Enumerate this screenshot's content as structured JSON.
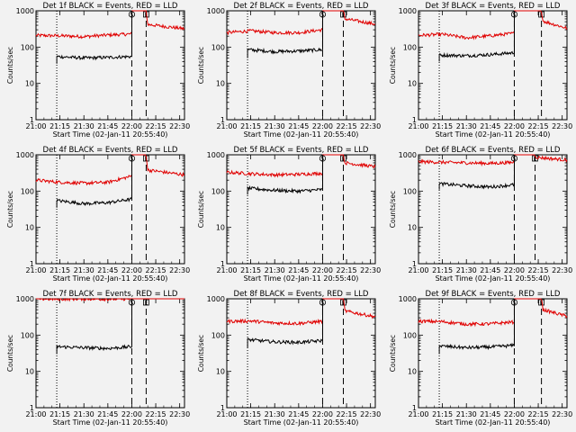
{
  "figure": {
    "background": "#f2f2f2",
    "colors": {
      "events": "#000000",
      "lld": "#e00000",
      "axis": "#000000"
    }
  },
  "chart_data": [
    {
      "type": "line",
      "title": "Det 1f BLACK = Events, RED = LLD",
      "xlabel": "Start Time (02-Jan-11 20:55:40)",
      "ylabel": "Counts/sec",
      "yscale": "log",
      "ylim": [
        1,
        1000
      ],
      "xlim": [
        "21:00",
        "22:33"
      ],
      "xticks": [
        "21:00",
        "21:15",
        "21:30",
        "21:45",
        "22:00",
        "22:15",
        "22:30"
      ],
      "yticks": [
        "1",
        "10",
        "100",
        "1000"
      ],
      "grid": false,
      "markers": [
        {
          "time": "21:13",
          "style": "dotted"
        },
        {
          "time": "22:00",
          "style": "dashed"
        },
        {
          "time": "22:09",
          "style": "dashed"
        }
      ],
      "flags": [
        {
          "time": "22:00",
          "label": "S"
        },
        {
          "time": "22:09",
          "label": "E"
        }
      ],
      "series": [
        {
          "color": "#e00000",
          "points": [
            [
              "21:00",
              210
            ],
            [
              "21:15",
              205
            ],
            [
              "21:30",
              195
            ],
            [
              "21:45",
              215
            ],
            [
              "22:00",
              230
            ],
            [
              "22:00",
              1000
            ],
            [
              "22:09",
              1000
            ],
            [
              "22:10",
              420
            ],
            [
              "22:33",
              320
            ]
          ]
        },
        {
          "color": "#000000",
          "points": [
            [
              "21:13",
              35
            ],
            [
              "21:13",
              55
            ],
            [
              "21:30",
              50
            ],
            [
              "21:45",
              52
            ],
            [
              "22:00",
              55
            ],
            [
              "22:00",
              1000
            ]
          ]
        }
      ]
    },
    {
      "type": "line",
      "title": "Det 2f BLACK = Events, RED = LLD",
      "xlabel": "Start Time (02-Jan-11 20:55:40)",
      "ylabel": "Counts/sec",
      "yscale": "log",
      "ylim": [
        1,
        1000
      ],
      "xlim": [
        "21:00",
        "22:33"
      ],
      "xticks": [
        "21:00",
        "21:15",
        "21:30",
        "21:45",
        "22:00",
        "22:15",
        "22:30"
      ],
      "yticks": [
        "1",
        "10",
        "100",
        "1000"
      ],
      "grid": false,
      "markers": [
        {
          "time": "21:13",
          "style": "dotted"
        },
        {
          "time": "22:00",
          "style": "dashed"
        },
        {
          "time": "22:13",
          "style": "dashed"
        }
      ],
      "flags": [
        {
          "time": "22:00",
          "label": "S"
        },
        {
          "time": "22:13",
          "label": "E"
        }
      ],
      "series": [
        {
          "color": "#e00000",
          "points": [
            [
              "21:00",
              250
            ],
            [
              "21:15",
              280
            ],
            [
              "21:30",
              250
            ],
            [
              "21:45",
              250
            ],
            [
              "22:00",
              300
            ],
            [
              "22:00",
              1000
            ],
            [
              "22:13",
              1000
            ],
            [
              "22:14",
              600
            ],
            [
              "22:33",
              430
            ]
          ]
        },
        {
          "color": "#000000",
          "points": [
            [
              "21:13",
              50
            ],
            [
              "21:13",
              85
            ],
            [
              "21:30",
              75
            ],
            [
              "21:45",
              78
            ],
            [
              "22:00",
              85
            ],
            [
              "22:00",
              1000
            ]
          ]
        }
      ]
    },
    {
      "type": "line",
      "title": "Det 3f BLACK = Events, RED = LLD",
      "xlabel": "Start Time (02-Jan-11 20:55:40)",
      "ylabel": "Counts/sec",
      "yscale": "log",
      "ylim": [
        1,
        1000
      ],
      "xlim": [
        "21:00",
        "22:33"
      ],
      "xticks": [
        "21:00",
        "21:15",
        "21:30",
        "21:45",
        "22:00",
        "22:15",
        "22:30"
      ],
      "yticks": [
        "1",
        "10",
        "100",
        "1000"
      ],
      "grid": false,
      "markers": [
        {
          "time": "21:13",
          "style": "dotted"
        },
        {
          "time": "22:00",
          "style": "dashed"
        },
        {
          "time": "22:17",
          "style": "dashed"
        }
      ],
      "flags": [
        {
          "time": "22:00",
          "label": "S"
        },
        {
          "time": "22:17",
          "label": "E"
        }
      ],
      "series": [
        {
          "color": "#e00000",
          "points": [
            [
              "21:00",
              210
            ],
            [
              "21:15",
              225
            ],
            [
              "21:30",
              180
            ],
            [
              "21:45",
              205
            ],
            [
              "22:00",
              240
            ],
            [
              "22:00",
              1000
            ],
            [
              "22:17",
              1000
            ],
            [
              "22:18",
              520
            ],
            [
              "22:33",
              330
            ]
          ]
        },
        {
          "color": "#000000",
          "points": [
            [
              "21:13",
              40
            ],
            [
              "21:13",
              60
            ],
            [
              "21:30",
              58
            ],
            [
              "21:45",
              62
            ],
            [
              "22:00",
              70
            ],
            [
              "22:00",
              1000
            ]
          ]
        }
      ]
    },
    {
      "type": "line",
      "title": "Det 4f BLACK = Events, RED = LLD",
      "xlabel": "Start Time (02-Jan-11 20:55:40)",
      "ylabel": "Counts/sec",
      "yscale": "log",
      "ylim": [
        1,
        1000
      ],
      "xlim": [
        "21:00",
        "22:33"
      ],
      "xticks": [
        "21:00",
        "21:15",
        "21:30",
        "21:45",
        "22:00",
        "22:15",
        "22:30"
      ],
      "yticks": [
        "1",
        "10",
        "100",
        "1000"
      ],
      "grid": false,
      "markers": [
        {
          "time": "21:13",
          "style": "dotted"
        },
        {
          "time": "22:00",
          "style": "dashed"
        },
        {
          "time": "22:09",
          "style": "dashed"
        }
      ],
      "flags": [
        {
          "time": "22:00",
          "label": "S"
        },
        {
          "time": "22:09",
          "label": "E"
        }
      ],
      "series": [
        {
          "color": "#e00000",
          "points": [
            [
              "21:00",
              200
            ],
            [
              "21:15",
              175
            ],
            [
              "21:30",
              165
            ],
            [
              "21:45",
              175
            ],
            [
              "22:00",
              260
            ],
            [
              "22:00",
              1000
            ],
            [
              "22:09",
              1000
            ],
            [
              "22:10",
              380
            ],
            [
              "22:33",
              280
            ]
          ]
        },
        {
          "color": "#000000",
          "points": [
            [
              "21:13",
              35
            ],
            [
              "21:13",
              55
            ],
            [
              "21:30",
              45
            ],
            [
              "21:45",
              48
            ],
            [
              "22:00",
              60
            ],
            [
              "22:00",
              1000
            ]
          ]
        }
      ]
    },
    {
      "type": "line",
      "title": "Det 5f BLACK = Events, RED = LLD",
      "xlabel": "Start Time (02-Jan-11 20:55:40)",
      "ylabel": "Counts/sec",
      "yscale": "log",
      "ylim": [
        1,
        1000
      ],
      "xlim": [
        "21:00",
        "22:33"
      ],
      "xticks": [
        "21:00",
        "21:15",
        "21:30",
        "21:45",
        "22:00",
        "22:15",
        "22:30"
      ],
      "yticks": [
        "1",
        "10",
        "100",
        "1000"
      ],
      "grid": false,
      "markers": [
        {
          "time": "21:13",
          "style": "dotted"
        },
        {
          "time": "22:00",
          "style": "dashed"
        },
        {
          "time": "22:13",
          "style": "dashed"
        }
      ],
      "flags": [
        {
          "time": "22:00",
          "label": "S"
        },
        {
          "time": "22:13",
          "label": "E"
        }
      ],
      "series": [
        {
          "color": "#e00000",
          "points": [
            [
              "21:00",
              330
            ],
            [
              "21:15",
              300
            ],
            [
              "21:30",
              280
            ],
            [
              "21:45",
              290
            ],
            [
              "22:00",
              310
            ],
            [
              "22:00",
              1000
            ],
            [
              "22:13",
              1000
            ],
            [
              "22:14",
              600
            ],
            [
              "22:33",
              470
            ]
          ]
        },
        {
          "color": "#000000",
          "points": [
            [
              "21:13",
              80
            ],
            [
              "21:13",
              120
            ],
            [
              "21:30",
              105
            ],
            [
              "21:45",
              100
            ],
            [
              "22:00",
              110
            ],
            [
              "22:00",
              1000
            ]
          ]
        }
      ]
    },
    {
      "type": "line",
      "title": "Det 6f BLACK = Events, RED = LLD",
      "xlabel": "Start Time (02-Jan-11 20:55:40)",
      "ylabel": "Counts/sec",
      "yscale": "log",
      "ylim": [
        1,
        1000
      ],
      "xlim": [
        "21:00",
        "22:33"
      ],
      "xticks": [
        "21:00",
        "21:15",
        "21:30",
        "21:45",
        "22:00",
        "22:15",
        "22:30"
      ],
      "yticks": [
        "1",
        "10",
        "100",
        "1000"
      ],
      "grid": false,
      "markers": [
        {
          "time": "21:13",
          "style": "dotted"
        },
        {
          "time": "22:00",
          "style": "dashed"
        },
        {
          "time": "22:13",
          "style": "dashed"
        }
      ],
      "flags": [
        {
          "time": "22:00",
          "label": "S"
        },
        {
          "time": "22:13",
          "label": "E"
        }
      ],
      "series": [
        {
          "color": "#e00000",
          "points": [
            [
              "21:00",
              650
            ],
            [
              "21:15",
              620
            ],
            [
              "21:30",
              600
            ],
            [
              "21:45",
              580
            ],
            [
              "22:00",
              620
            ],
            [
              "22:00",
              1000
            ],
            [
              "22:13",
              1000
            ],
            [
              "22:14",
              850
            ],
            [
              "22:33",
              720
            ]
          ]
        },
        {
          "color": "#000000",
          "points": [
            [
              "21:13",
              110
            ],
            [
              "21:13",
              160
            ],
            [
              "21:30",
              140
            ],
            [
              "21:45",
              130
            ],
            [
              "22:00",
              150
            ],
            [
              "22:00",
              1000
            ]
          ]
        }
      ]
    },
    {
      "type": "line",
      "title": "Det 7f BLACK = Events, RED = LLD",
      "xlabel": "Start Time (02-Jan-11 20:55:40)",
      "ylabel": "Counts/sec",
      "yscale": "log",
      "ylim": [
        1,
        1000
      ],
      "xlim": [
        "21:00",
        "22:33"
      ],
      "xticks": [
        "21:00",
        "21:15",
        "21:30",
        "21:45",
        "22:00",
        "22:15",
        "22:30"
      ],
      "yticks": [
        "1",
        "10",
        "100",
        "1000"
      ],
      "grid": false,
      "markers": [
        {
          "time": "21:13",
          "style": "dotted"
        },
        {
          "time": "22:00",
          "style": "dashed"
        },
        {
          "time": "22:09",
          "style": "dashed"
        }
      ],
      "flags": [
        {
          "time": "22:00",
          "label": "S"
        },
        {
          "time": "22:09",
          "label": "E"
        }
      ],
      "series": [
        {
          "color": "#e00000",
          "points": [
            [
              "21:00",
              1000
            ],
            [
              "21:15",
              980
            ],
            [
              "21:30",
              1000
            ],
            [
              "21:45",
              980
            ],
            [
              "22:00",
              1000
            ],
            [
              "22:09",
              1000
            ],
            [
              "22:33",
              1000
            ]
          ]
        },
        {
          "color": "#000000",
          "points": [
            [
              "21:13",
              30
            ],
            [
              "21:13",
              48
            ],
            [
              "21:30",
              45
            ],
            [
              "21:45",
              43
            ],
            [
              "22:00",
              48
            ],
            [
              "22:00",
              1000
            ]
          ]
        }
      ]
    },
    {
      "type": "line",
      "title": "Det 8f BLACK = Events, RED = LLD",
      "xlabel": "Start Time (02-Jan-11 20:55:40)",
      "ylabel": "Counts/sec",
      "yscale": "log",
      "ylim": [
        1,
        1000
      ],
      "xlim": [
        "21:00",
        "22:33"
      ],
      "xticks": [
        "21:00",
        "21:15",
        "21:30",
        "21:45",
        "22:00",
        "22:15",
        "22:30"
      ],
      "yticks": [
        "1",
        "10",
        "100",
        "1000"
      ],
      "grid": false,
      "markers": [
        {
          "time": "21:13",
          "style": "dotted"
        },
        {
          "time": "22:00",
          "style": "dashed"
        },
        {
          "time": "22:13",
          "style": "dashed"
        }
      ],
      "flags": [
        {
          "time": "22:00",
          "label": "S"
        },
        {
          "time": "22:13",
          "label": "E"
        }
      ],
      "series": [
        {
          "color": "#e00000",
          "points": [
            [
              "21:00",
              240
            ],
            [
              "21:15",
              245
            ],
            [
              "21:30",
              215
            ],
            [
              "21:45",
              210
            ],
            [
              "22:00",
              240
            ],
            [
              "22:00",
              1000
            ],
            [
              "22:13",
              1000
            ],
            [
              "22:14",
              460
            ],
            [
              "22:33",
              320
            ]
          ]
        },
        {
          "color": "#000000",
          "points": [
            [
              "21:13",
              45
            ],
            [
              "21:13",
              75
            ],
            [
              "21:30",
              65
            ],
            [
              "21:45",
              63
            ],
            [
              "22:00",
              70
            ],
            [
              "22:00",
              1000
            ]
          ]
        }
      ]
    },
    {
      "type": "line",
      "title": "Det 9f BLACK = Events, RED = LLD",
      "xlabel": "Start Time (02-Jan-11 20:55:40)",
      "ylabel": "Counts/sec",
      "yscale": "log",
      "ylim": [
        1,
        1000
      ],
      "xlim": [
        "21:00",
        "22:33"
      ],
      "xticks": [
        "21:00",
        "21:15",
        "21:30",
        "21:45",
        "22:00",
        "22:15",
        "22:30"
      ],
      "yticks": [
        "1",
        "10",
        "100",
        "1000"
      ],
      "grid": false,
      "markers": [
        {
          "time": "21:13",
          "style": "dotted"
        },
        {
          "time": "22:00",
          "style": "dashed"
        },
        {
          "time": "22:17",
          "style": "dashed"
        }
      ],
      "flags": [
        {
          "time": "22:00",
          "label": "S"
        },
        {
          "time": "22:17",
          "label": "E"
        }
      ],
      "series": [
        {
          "color": "#e00000",
          "points": [
            [
              "21:00",
              240
            ],
            [
              "21:15",
              235
            ],
            [
              "21:30",
              200
            ],
            [
              "21:45",
              205
            ],
            [
              "22:00",
              230
            ],
            [
              "22:00",
              1000
            ],
            [
              "22:17",
              1000
            ],
            [
              "22:18",
              500
            ],
            [
              "22:33",
              330
            ]
          ]
        },
        {
          "color": "#000000",
          "points": [
            [
              "21:13",
              30
            ],
            [
              "21:13",
              50
            ],
            [
              "21:30",
              45
            ],
            [
              "21:45",
              47
            ],
            [
              "22:00",
              52
            ],
            [
              "22:00",
              1000
            ]
          ]
        }
      ]
    }
  ]
}
